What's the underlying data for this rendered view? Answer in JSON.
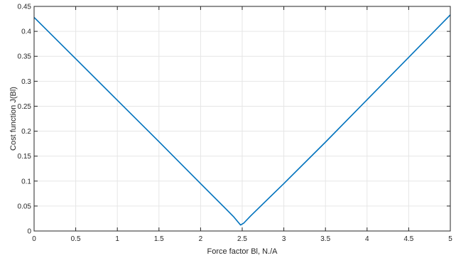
{
  "chart_data": {
    "type": "line",
    "title": "",
    "xlabel": "Force factor Bl, N./A",
    "ylabel": "Cost function J(Bl)",
    "xlim": [
      0,
      5
    ],
    "ylim": [
      0,
      0.45
    ],
    "xticks": [
      0,
      0.5,
      1,
      1.5,
      2,
      2.5,
      3,
      3.5,
      4,
      4.5,
      5
    ],
    "yticks": [
      0,
      0.05,
      0.1,
      0.15,
      0.2,
      0.25,
      0.3,
      0.35,
      0.4,
      0.45
    ],
    "xtick_labels": [
      "0",
      "0.5",
      "1",
      "1.5",
      "2",
      "2.5",
      "3",
      "3.5",
      "4",
      "4.5",
      "5"
    ],
    "ytick_labels": [
      "0",
      "0.05",
      "0.1",
      "0.15",
      "0.2",
      "0.25",
      "0.3",
      "0.35",
      "0.4",
      "0.45"
    ],
    "grid": true,
    "box": true,
    "series": [
      {
        "color": "#0072BD",
        "x": [
          0,
          0.5,
          1.0,
          1.5,
          2.0,
          2.3,
          2.4,
          2.45,
          2.48,
          2.52,
          2.6,
          3.0,
          3.5,
          4.0,
          4.5,
          5.0
        ],
        "y": [
          0.428,
          0.345,
          0.262,
          0.179,
          0.095,
          0.045,
          0.028,
          0.018,
          0.012,
          0.016,
          0.03,
          0.095,
          0.178,
          0.263,
          0.348,
          0.433
        ]
      }
    ]
  }
}
